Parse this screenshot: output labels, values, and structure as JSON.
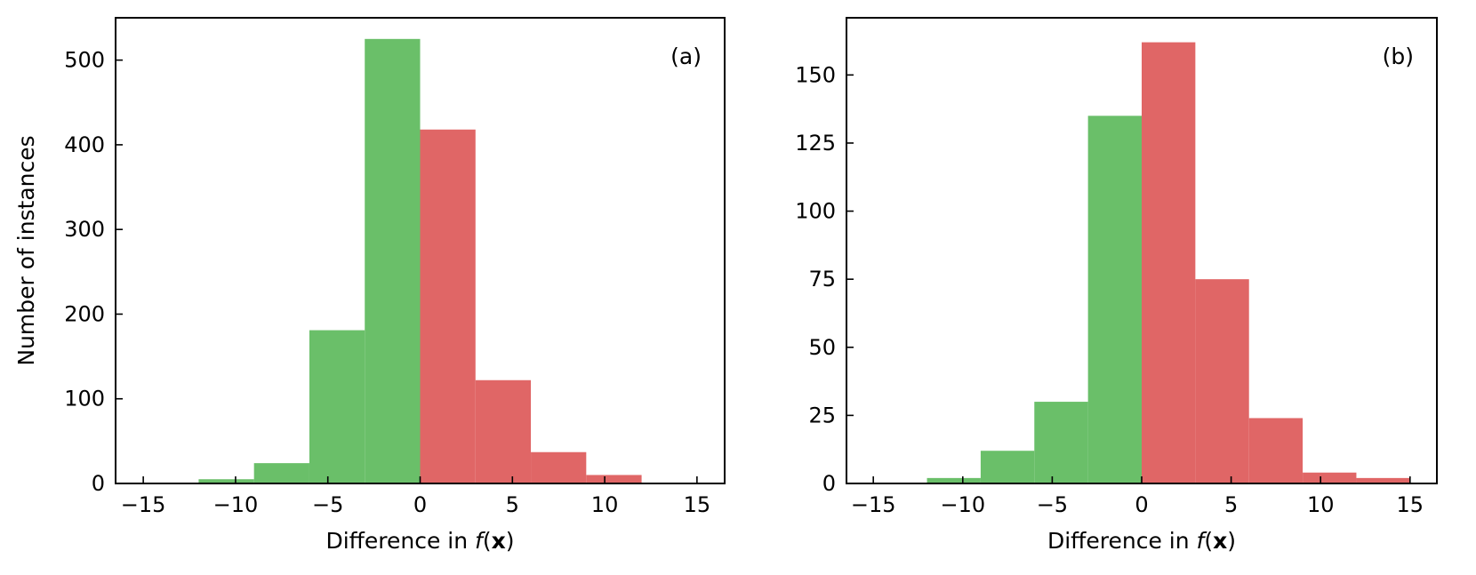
{
  "chart_data": [
    {
      "type": "bar",
      "panel_label": "(a)",
      "xlabel": {
        "prefix": "Difference in ",
        "func": "f",
        "open": "(",
        "var": "x",
        "close": ")"
      },
      "ylabel": "Number of instances",
      "xlim": [
        -16.5,
        16.5
      ],
      "ylim": [
        0,
        550
      ],
      "xticks": [
        -15,
        -10,
        -5,
        0,
        5,
        10,
        15
      ],
      "yticks": [
        0,
        100,
        200,
        300,
        400,
        500
      ],
      "bins": [
        {
          "x0": -15,
          "x1": -12,
          "value": 1,
          "color": "#6abf69"
        },
        {
          "x0": -12,
          "x1": -9,
          "value": 5,
          "color": "#6abf69"
        },
        {
          "x0": -9,
          "x1": -6,
          "value": 24,
          "color": "#6abf69"
        },
        {
          "x0": -6,
          "x1": -3,
          "value": 181,
          "color": "#6abf69"
        },
        {
          "x0": -3,
          "x1": 0,
          "value": 525,
          "color": "#6abf69"
        },
        {
          "x0": 0,
          "x1": 3,
          "value": 418,
          "color": "#e06666"
        },
        {
          "x0": 3,
          "x1": 6,
          "value": 122,
          "color": "#e06666"
        },
        {
          "x0": 6,
          "x1": 9,
          "value": 37,
          "color": "#e06666"
        },
        {
          "x0": 9,
          "x1": 12,
          "value": 10,
          "color": "#e06666"
        }
      ],
      "grid": false,
      "legend": "none"
    },
    {
      "type": "bar",
      "panel_label": "(b)",
      "xlabel": {
        "prefix": "Difference in ",
        "func": "f",
        "open": "(",
        "var": "x",
        "close": ")"
      },
      "ylabel": "",
      "xlim": [
        -16.5,
        16.5
      ],
      "ylim": [
        0,
        171
      ],
      "xticks": [
        -15,
        -10,
        -5,
        0,
        5,
        10,
        15
      ],
      "yticks": [
        0,
        25,
        50,
        75,
        100,
        125,
        150
      ],
      "bins": [
        {
          "x0": -12,
          "x1": -9,
          "value": 2,
          "color": "#6abf69"
        },
        {
          "x0": -9,
          "x1": -6,
          "value": 12,
          "color": "#6abf69"
        },
        {
          "x0": -6,
          "x1": -3,
          "value": 30,
          "color": "#6abf69"
        },
        {
          "x0": -3,
          "x1": 0,
          "value": 135,
          "color": "#6abf69"
        },
        {
          "x0": 0,
          "x1": 3,
          "value": 162,
          "color": "#e06666"
        },
        {
          "x0": 3,
          "x1": 6,
          "value": 75,
          "color": "#e06666"
        },
        {
          "x0": 6,
          "x1": 9,
          "value": 24,
          "color": "#e06666"
        },
        {
          "x0": 9,
          "x1": 12,
          "value": 4,
          "color": "#e06666"
        },
        {
          "x0": 12,
          "x1": 15,
          "value": 2,
          "color": "#e06666"
        }
      ],
      "grid": false,
      "legend": "none"
    }
  ]
}
